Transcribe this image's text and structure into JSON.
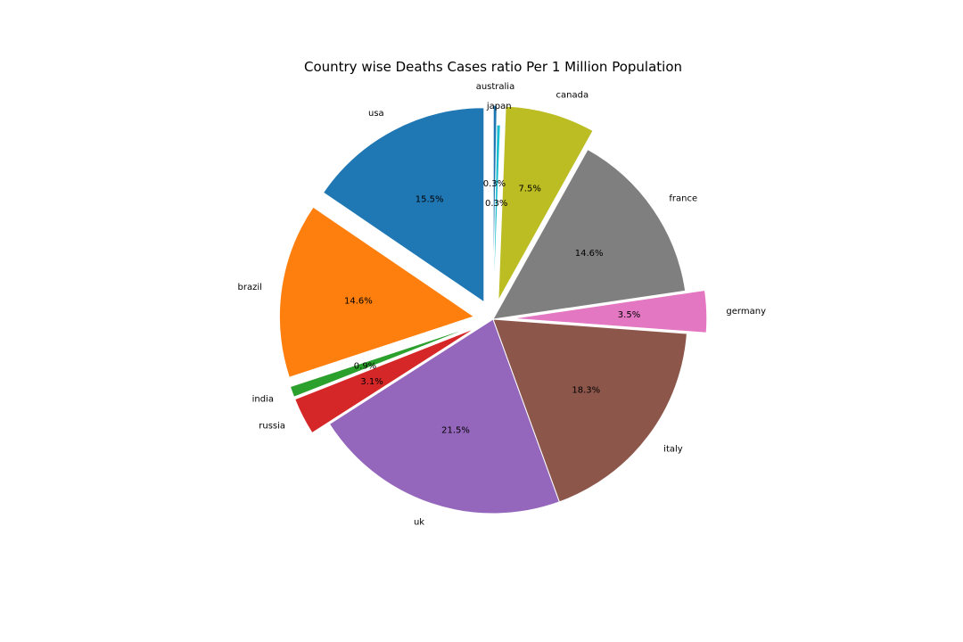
{
  "chart_data": {
    "type": "pie",
    "title": "Country wise Deaths Cases ratio Per 1 Million Population",
    "slices": [
      {
        "label": "usa",
        "value": 15.5,
        "pct_label": "15.5%",
        "color": "#1f77b4",
        "exploded": true
      },
      {
        "label": "brazil",
        "value": 14.6,
        "pct_label": "14.6%",
        "color": "#ff7f0e",
        "exploded": true
      },
      {
        "label": "india",
        "value": 0.9,
        "pct_label": "0.9%",
        "color": "#2ca02c",
        "exploded": true
      },
      {
        "label": "russia",
        "value": 3.1,
        "pct_label": "3.1%",
        "color": "#d62728",
        "exploded": true
      },
      {
        "label": "uk",
        "value": 21.5,
        "pct_label": "21.5%",
        "color": "#9467bd",
        "exploded": false
      },
      {
        "label": "italy",
        "value": 18.3,
        "pct_label": "18.3%",
        "color": "#8c564b",
        "exploded": false
      },
      {
        "label": "germany",
        "value": 3.5,
        "pct_label": "3.5%",
        "color": "#e377c2",
        "exploded": true
      },
      {
        "label": "france",
        "value": 14.6,
        "pct_label": "14.6%",
        "color": "#7f7f7f",
        "exploded": false
      },
      {
        "label": "canada",
        "value": 7.5,
        "pct_label": "7.5%",
        "color": "#bcbd22",
        "exploded": true
      },
      {
        "label": "japan",
        "value": 0.3,
        "pct_label": "0.3%",
        "color": "#17becf",
        "exploded": false
      },
      {
        "label": "australia",
        "value": 0.3,
        "pct_label": "0.3%",
        "color": "#1f77b4",
        "exploded": true
      }
    ]
  }
}
